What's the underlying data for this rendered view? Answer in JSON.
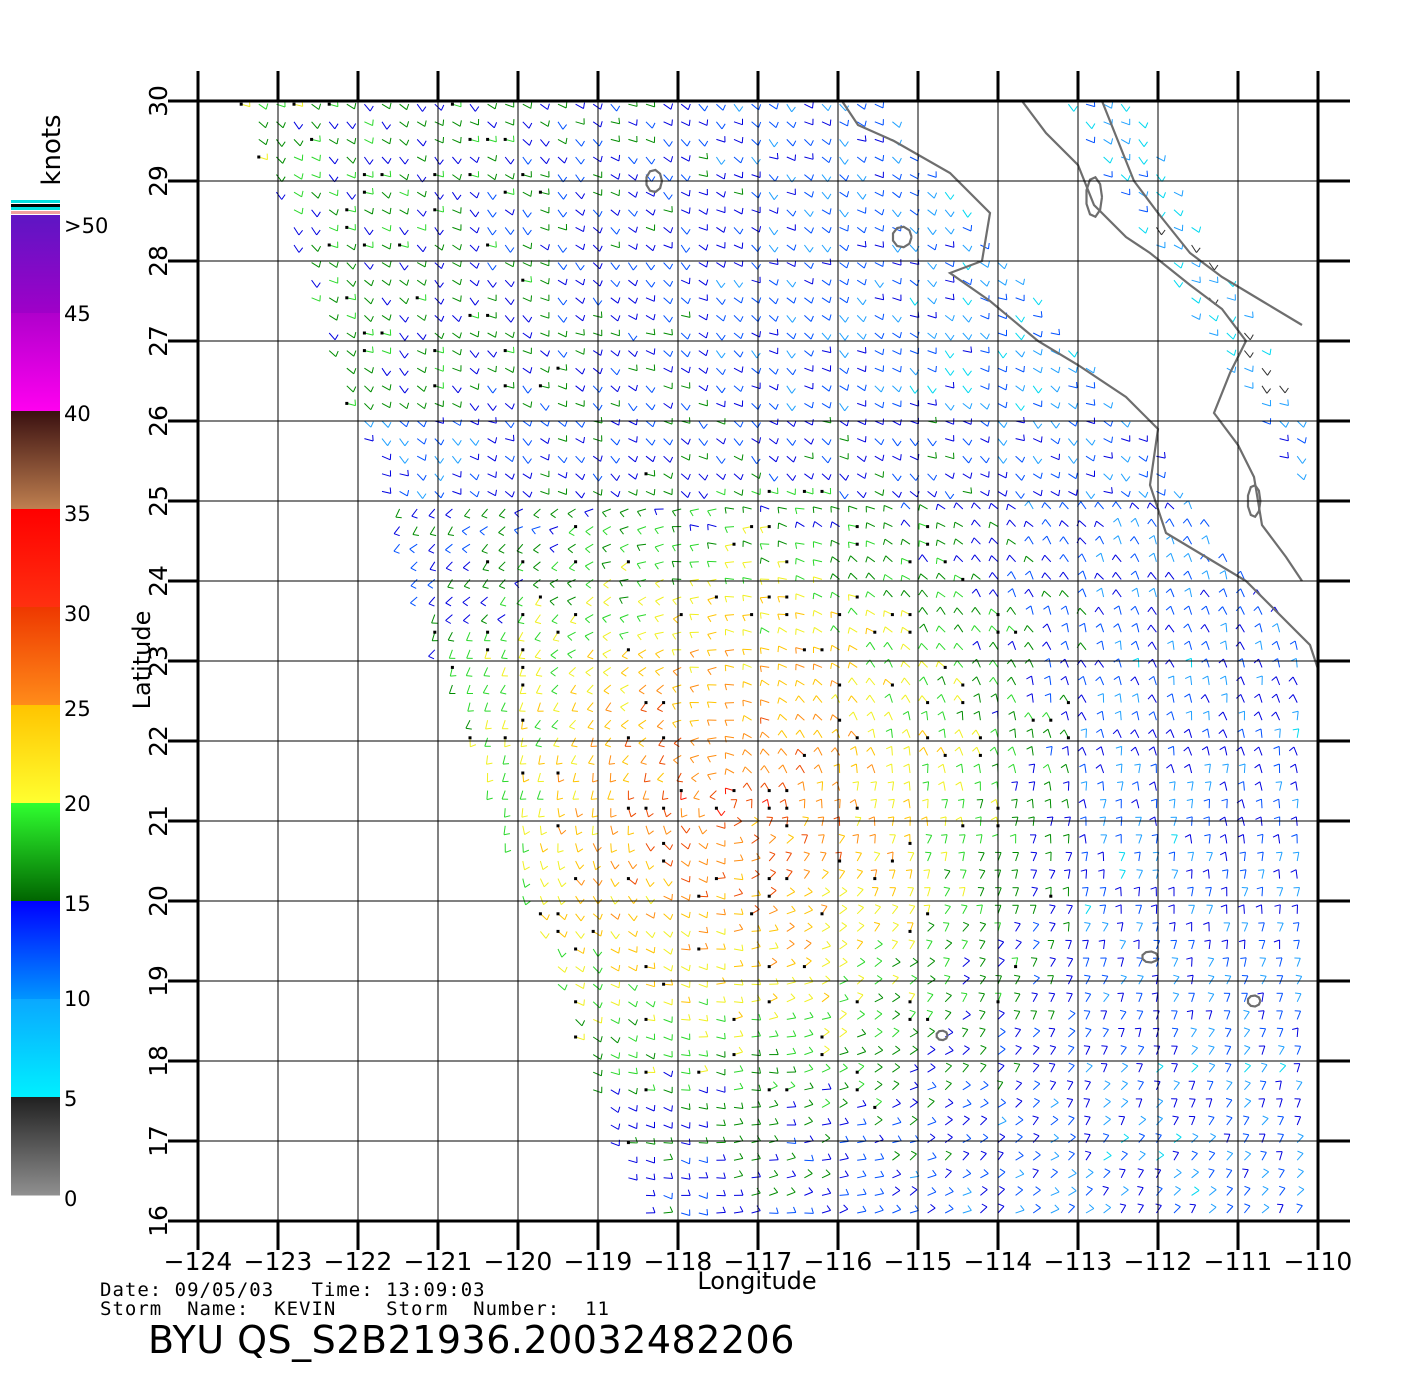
{
  "colors": {
    "coast": "#6e6e6e",
    "grid": "#000000"
  },
  "axes": {
    "xlabel": "Longitude",
    "ylabel": "Latitude",
    "lon_ticks": [
      "-124",
      "-123",
      "-122",
      "-121",
      "-120",
      "-119",
      "-118",
      "-117",
      "-116",
      "-115",
      "-114",
      "-113",
      "-112",
      "-111",
      "-110"
    ],
    "lat_ticks": [
      "16",
      "17",
      "18",
      "19",
      "20",
      "21",
      "22",
      "23",
      "24",
      "25",
      "26",
      "27",
      "28",
      "29",
      "30"
    ],
    "lon_range": [
      -124,
      -110
    ],
    "lat_range": [
      16,
      30
    ]
  },
  "colorbar": {
    "unit": "knots",
    "labels": [
      ">50",
      "45",
      "40",
      "35",
      "30",
      "25",
      "20",
      "15",
      "10",
      "5",
      "0"
    ]
  },
  "info": {
    "line1": "Date: 09/05/03   Time: 13:09:03",
    "line2": "Storm  Name:  KEVIN    Storm  Number:  11",
    "product": "BYU  QS_S2B21936.20032482206"
  }
}
